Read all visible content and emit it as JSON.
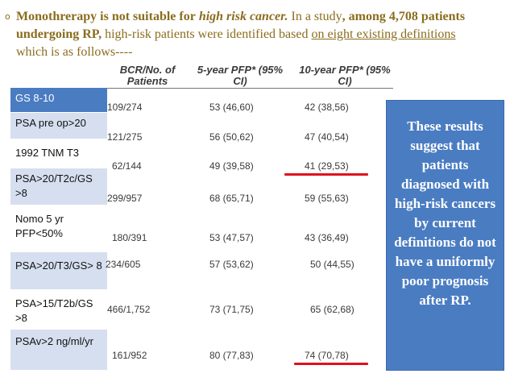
{
  "bullet": {
    "mark": "o",
    "bold_intro": "Monothrerapy is not suitable for",
    "italic_term": "high risk cancer.",
    "plain_1": " In a study",
    "bold_2": ", among 4,708 patients undergoing RP,",
    "plain_2": " high-risk patients were identified based ",
    "underlined": "on eight existing definitions",
    "plain_3": " which is as follows----"
  },
  "definitions": [
    "GS 8-10",
    "PSA pre op>20",
    "1992 TNM T3",
    "PSA>20/T2c/GS >8",
    "Nomo 5 yr PFP<50%",
    "PSA>20/T3/GS> 8",
    "PSA>15/T2b/GS >8",
    "PSAv>2 ng/ml/yr"
  ],
  "table": {
    "headers": [
      "BCR/No. of Patients",
      "5-year PFP* (95% CI)",
      "10-year PFP* (95% CI)"
    ],
    "rows": [
      [
        "109/274",
        "53 (46,60)",
        "42 (38,56)"
      ],
      [
        "121/275",
        "56 (50,62)",
        "47 (40,54)"
      ],
      [
        "62/144",
        "49 (39,58)",
        "41 (29,53)"
      ],
      [
        "299/957",
        "68 (65,71)",
        "59 (55,63)"
      ],
      [
        "180/391",
        "53 (47,57)",
        "43 (36,49)"
      ],
      [
        "234/605",
        "57 (53,62)",
        "50 (44,55)"
      ],
      [
        "466/1,752",
        "73 (71,75)",
        "65 (62,68)"
      ],
      [
        "161/952",
        "80 (77,83)",
        "74 (70,78)"
      ]
    ]
  },
  "conclusion": "These results suggest that patients diagnosed with high-risk cancers by current definitions do not have a uniformly poor prognosis after RP.",
  "colors": {
    "accent_blue": "#4a7cc2",
    "row_tint": "#d6dff0",
    "highlight_red": "#e01020",
    "bullet_text": "#8a6d1e"
  }
}
